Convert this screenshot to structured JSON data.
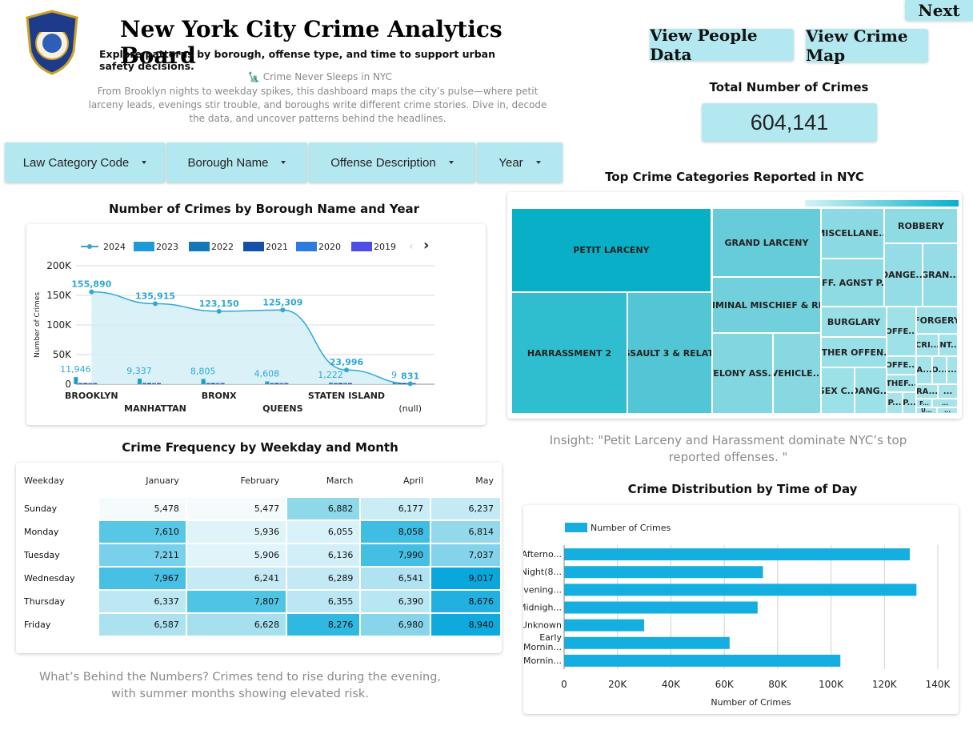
{
  "header": {
    "logo_text": "POLICE DEPARTMENT CITY OF NEW YORK",
    "title": "New York City Crime Analytics Board",
    "subtitle": "Explore patterns by borough, offense type, and time to support urban safety decisions.",
    "story_title": "🗽 Crime Never Sleeps in NYC",
    "story_body": "From Brooklyn nights to weekday spikes, this dashboard maps the city’s pulse—where petit larceny leads, evenings stir trouble, and boroughs write different crime stories. Dive in, decode the data, and uncover patterns behind the headlines."
  },
  "nav": {
    "next_label": "Next",
    "people_label": "View People Data",
    "map_label": "View Crime Map"
  },
  "total": {
    "label": "Total Number of Crimes",
    "value": "604,141"
  },
  "filters": [
    "Law Category Code",
    "Borough Name",
    "Offense Description",
    "Year"
  ],
  "borough_chart": {
    "title": "Number of Crimes by Borough Name and Year",
    "ylabel": "Number of Crimes",
    "yticks": [
      "0",
      "50K",
      "100K",
      "150K",
      "200K"
    ],
    "legend": [
      "2024",
      "2023",
      "2022",
      "2021",
      "2020",
      "2019"
    ],
    "colors": [
      "#2ea8d6",
      "#1e9ad6",
      "#1677b8",
      "#1550a8",
      "#2d7ae0",
      "#4b4ee6"
    ],
    "nav_prev": "‹",
    "nav_next": "›"
  },
  "chart_data": [
    {
      "type": "line",
      "categories": [
        "BROOKLYN",
        "MANHATTAN",
        "BRONX",
        "QUEENS",
        "STATEN ISLAND",
        "(null)"
      ],
      "ylim": [
        0,
        200000
      ],
      "series": [
        {
          "name": "2024",
          "values": [
            155890,
            135915,
            123150,
            125309,
            23996,
            831
          ]
        },
        {
          "name": "2023",
          "values": [
            11946,
            9337,
            8805,
            4608,
            1222,
            9
          ]
        }
      ],
      "value_labels_2024": [
        "155,890",
        "135,915",
        "123,150",
        "125,309",
        "23,996",
        "831"
      ],
      "value_labels_2023": [
        "11,946",
        "9,337",
        "8,805",
        "4,608",
        "1,222",
        "9"
      ]
    },
    {
      "type": "bar",
      "title": "Crime Distribution by Time of Day",
      "categories": [
        "Afterno...",
        "Night(8...",
        "Evening...",
        "Midnigh...",
        "Unknown",
        "Early Mornin...",
        "Mornin..."
      ],
      "values": [
        129500,
        74500,
        132000,
        72500,
        30000,
        62000,
        103500
      ],
      "xlabel": "Number of Crimes",
      "legend": "Number of Crimes",
      "xticks": [
        "0",
        "20K",
        "40K",
        "60K",
        "80K",
        "100K",
        "120K",
        "140K"
      ],
      "xlim": [
        0,
        140000
      ]
    }
  ],
  "treemap": {
    "title": "Top Crime Categories Reported in NYC",
    "cells": [
      {
        "label": "PETIT LARCENY",
        "color": "#07b0c7"
      },
      {
        "label": "HARRASSMENT 2",
        "color": "#2fbdd0"
      },
      {
        "label": "ASSAULT 3 & RELAT...",
        "color": "#52c6d5"
      },
      {
        "label": "GRAND LARCENY",
        "color": "#66ccd9"
      },
      {
        "label": "CRIMINAL MISCHIEF & RE...",
        "color": "#72d0dc"
      },
      {
        "label": "FELONY ASS...",
        "color": "#82d6e0"
      },
      {
        "label": "VEHICLE...",
        "color": "#88d8e2"
      },
      {
        "label": "MISCELLANE...",
        "color": "#8ad9e3"
      },
      {
        "label": "OFF. AGNST P...",
        "color": "#8fdbe4"
      },
      {
        "label": "ROBBERY",
        "color": "#8fdbe4"
      },
      {
        "label": "DANGE...",
        "color": "#95dde6"
      },
      {
        "label": "GRAN...",
        "color": "#95dde6"
      },
      {
        "label": "BURGLARY",
        "color": "#97dee6"
      },
      {
        "label": "OTHER OFFEN...",
        "color": "#99dfe7"
      },
      {
        "label": "SEX C...",
        "color": "#9ce0e8"
      },
      {
        "label": "DANG...",
        "color": "#9ce0e8"
      },
      {
        "label": "OFFE...",
        "color": "#9fe1e8"
      },
      {
        "label": "FORGERY",
        "color": "#9fe1e8"
      },
      {
        "label": "CRI...",
        "color": "#a2e2e9"
      },
      {
        "label": "INT...",
        "color": "#a2e2e9"
      },
      {
        "label": "OFFE...",
        "color": "#a2e2e9"
      },
      {
        "label": "A...",
        "color": "#a4e3ea"
      },
      {
        "label": "O...",
        "color": "#a4e3ea"
      },
      {
        "label": "...",
        "color": "#a4e3ea"
      },
      {
        "label": "THEF...",
        "color": "#a4e3ea"
      },
      {
        "label": "RA...",
        "color": "#a7e4ea"
      },
      {
        "label": "...",
        "color": "#a7e4ea"
      },
      {
        "label": "P...",
        "color": "#a7e4ea"
      },
      {
        "label": "P...",
        "color": "#a7e4ea"
      },
      {
        "label": "F...",
        "color": "#a7e4ea"
      },
      {
        "label": "...",
        "color": "#a7e4ea"
      },
      {
        "label": "U...",
        "color": "#a9e5eb"
      },
      {
        "label": "...",
        "color": "#a9e5eb"
      }
    ],
    "insight": "Insight: \"Petit Larceny and Harassment dominate NYC’s top reported offenses. \""
  },
  "heatmap": {
    "title": "Crime Frequency by Weekday and Month",
    "corner": "Weekday",
    "months": [
      "January",
      "February",
      "March",
      "April",
      "May"
    ],
    "rows": [
      {
        "day": "Sunday",
        "values": [
          "5,478",
          "5,477",
          "6,882",
          "6,177",
          "6,237"
        ],
        "colors": [
          "#f5fbfd",
          "#f5fbfd",
          "#8fd8ea",
          "#c9ecf5",
          "#c4eaf5"
        ]
      },
      {
        "day": "Monday",
        "values": [
          "7,610",
          "5,936",
          "6,055",
          "8,058",
          "6,814"
        ],
        "colors": [
          "#58c7e6",
          "#dff4f9",
          "#d9f1f8",
          "#3fbde3",
          "#94d9eb"
        ]
      },
      {
        "day": "Tuesday",
        "values": [
          "7,211",
          "5,906",
          "6,136",
          "7,990",
          "7,037"
        ],
        "colors": [
          "#78d0ea",
          "#e0f4f9",
          "#d2eff7",
          "#44bfe3",
          "#84d3ea"
        ]
      },
      {
        "day": "Wednesday",
        "values": [
          "7,967",
          "6,241",
          "6,289",
          "6,541",
          "9,017"
        ],
        "colors": [
          "#47c0e4",
          "#c6eaf5",
          "#c2e9f4",
          "#b0e3f1",
          "#0aa7dc"
        ]
      },
      {
        "day": "Thursday",
        "values": [
          "6,337",
          "7,807",
          "6,355",
          "6,390",
          "8,676"
        ],
        "colors": [
          "#bde8f3",
          "#50c4e5",
          "#bae7f3",
          "#b8e6f3",
          "#22b0e0"
        ]
      },
      {
        "day": "Friday",
        "values": [
          "6,587",
          "6,628",
          "8,276",
          "6,980",
          "8,940"
        ],
        "colors": [
          "#ace2f0",
          "#a6e0ef",
          "#31b8e1",
          "#88d5eb",
          "#0eaadd"
        ]
      }
    ],
    "footnote": "What’s Behind the Numbers? Crimes tend to rise during the evening, with summer months showing elevated risk."
  }
}
